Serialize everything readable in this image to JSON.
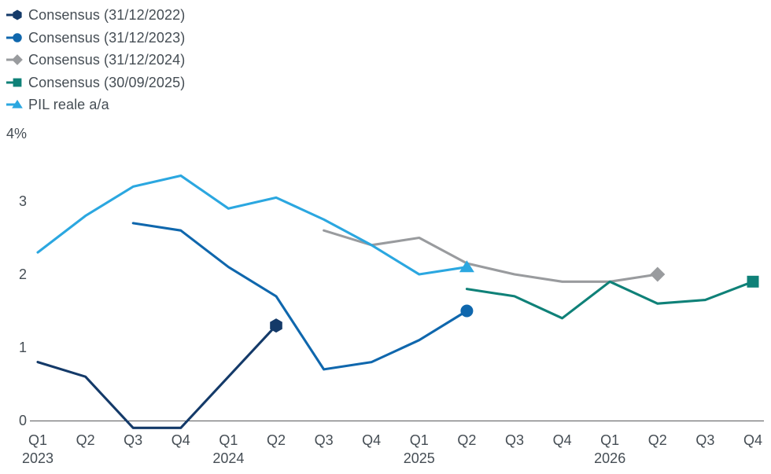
{
  "chart_data": {
    "type": "line",
    "title": "",
    "legend_position": "top-left",
    "grid": "x-baseline-only",
    "x_axis": {
      "quarters": [
        "Q1",
        "Q2",
        "Q3",
        "Q4",
        "Q1",
        "Q2",
        "Q3",
        "Q4",
        "Q1",
        "Q2",
        "Q3",
        "Q4",
        "Q1",
        "Q2",
        "Q3",
        "Q4"
      ],
      "years": [
        {
          "index": 0,
          "label": "2023"
        },
        {
          "index": 4,
          "label": "2024"
        },
        {
          "index": 8,
          "label": "2025"
        },
        {
          "index": 12,
          "label": "2026"
        }
      ]
    },
    "y_axis": {
      "unit": "%",
      "range": [
        -0.3,
        4
      ],
      "ticks": [
        {
          "value": 0,
          "label": "0"
        },
        {
          "value": 1,
          "label": "1"
        },
        {
          "value": 2,
          "label": "2"
        },
        {
          "value": 3,
          "label": "3"
        }
      ],
      "top_label": {
        "value": 4,
        "label": "4%"
      }
    },
    "series": [
      {
        "name": "Consensus (31/12/2022)",
        "color": "#143a69",
        "marker": "hexagon",
        "start_index": 0,
        "values": [
          0.8,
          0.6,
          -0.1,
          -0.1,
          0.6,
          1.3
        ]
      },
      {
        "name": "Consensus (31/12/2023)",
        "color": "#0f67ad",
        "marker": "circle",
        "start_index": 2,
        "values": [
          2.7,
          2.6,
          2.1,
          1.7,
          0.7,
          0.8,
          1.1,
          1.5
        ]
      },
      {
        "name": "Consensus (31/12/2024)",
        "color": "#999b9e",
        "marker": "diamond",
        "start_index": 6,
        "values": [
          2.6,
          2.4,
          2.5,
          2.15,
          2.0,
          1.9,
          1.9,
          2.0
        ]
      },
      {
        "name": "Consensus (30/09/2025)",
        "color": "#0f8178",
        "marker": "square",
        "start_index": 9,
        "values": [
          1.8,
          1.7,
          1.4,
          1.9,
          1.6,
          1.65,
          1.9
        ]
      },
      {
        "name": "PIL reale a/a",
        "color": "#2ba7e0",
        "marker": "triangle",
        "start_index": 0,
        "values": [
          2.3,
          2.8,
          3.2,
          3.35,
          2.9,
          3.05,
          2.75,
          2.4,
          2.0,
          2.1
        ]
      }
    ],
    "colors": {
      "axis_line": "#595a5c",
      "text": "#454d54"
    }
  }
}
